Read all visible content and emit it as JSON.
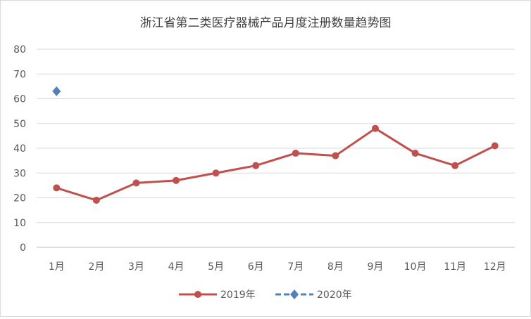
{
  "chart_data": {
    "type": "line",
    "title": "浙江省第二类医疗器械产品月度注册数量趋势图",
    "categories": [
      "1月",
      "2月",
      "3月",
      "4月",
      "5月",
      "6月",
      "7月",
      "8月",
      "9月",
      "10月",
      "11月",
      "12月"
    ],
    "ylim": [
      0,
      80
    ],
    "yticks": [
      0,
      10,
      20,
      30,
      40,
      50,
      60,
      70,
      80
    ],
    "grid": true,
    "legend_position": "bottom",
    "series": [
      {
        "name": "2019年",
        "color": "#c0504d",
        "marker": "circle",
        "line": "solid",
        "values": [
          24,
          19,
          26,
          27,
          30,
          33,
          38,
          37,
          48,
          38,
          33,
          41
        ]
      },
      {
        "name": "2020年",
        "color": "#4f81bd",
        "marker": "diamond",
        "line": "dashed",
        "values": [
          63,
          null,
          null,
          null,
          null,
          null,
          null,
          null,
          null,
          null,
          null,
          null
        ]
      }
    ]
  }
}
